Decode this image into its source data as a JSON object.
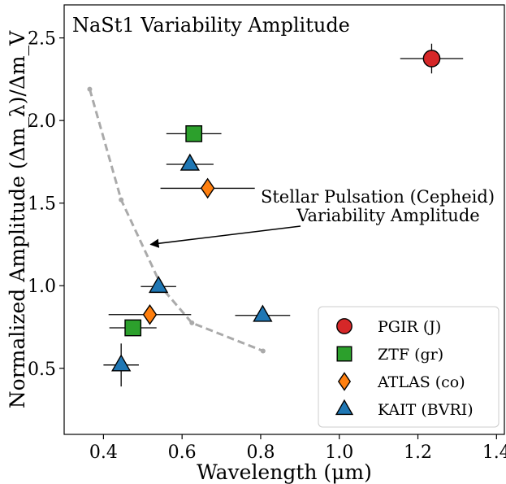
{
  "chart_data": {
    "type": "scatter",
    "title": "NaSt1 Variability Amplitude",
    "xlabel": "Wavelength (μm)",
    "ylabel": "Normalized Amplitude (Δm_λ)/Δm_V",
    "xlim": [
      0.3,
      1.42
    ],
    "ylim": [
      0.1,
      2.7
    ],
    "x_ticks": [
      "0.4",
      "0.6",
      "0.8",
      "1.0",
      "1.2",
      "1.4"
    ],
    "y_ticks": [
      "0.5",
      "1.0",
      "1.5",
      "2.0",
      "2.5"
    ],
    "legend_position": "lower-right",
    "series": [
      {
        "name": "PGIR (J)",
        "marker": "circle",
        "color": "#d62728",
        "points": [
          {
            "x": 1.235,
            "y": 2.375,
            "xerr": 0.08,
            "yerr": 0.09
          }
        ]
      },
      {
        "name": "ZTF (gr)",
        "marker": "square",
        "color": "#2ca02c",
        "points": [
          {
            "x": 0.475,
            "y": 0.745,
            "xerr": 0.06,
            "yerr": 0.0
          },
          {
            "x": 0.63,
            "y": 1.92,
            "xerr": 0.07,
            "yerr": 0.0
          }
        ]
      },
      {
        "name": "ATLAS (co)",
        "marker": "diamond",
        "color": "#ff7f0e",
        "points": [
          {
            "x": 0.518,
            "y": 0.825,
            "xerr": 0.105,
            "yerr": 0.0
          },
          {
            "x": 0.665,
            "y": 1.59,
            "xerr": 0.12,
            "yerr": 0.0
          }
        ]
      },
      {
        "name": "KAIT (BVRI)",
        "marker": "triangle",
        "color": "#1f77b4",
        "points": [
          {
            "x": 0.445,
            "y": 0.52,
            "xerr": 0.045,
            "yerr": 0.13
          },
          {
            "x": 0.54,
            "y": 0.995,
            "xerr": 0.045,
            "yerr": 0.0
          },
          {
            "x": 0.62,
            "y": 1.735,
            "xerr": 0.06,
            "yerr": 0.0
          },
          {
            "x": 0.805,
            "y": 0.82,
            "xerr": 0.07,
            "yerr": 0.0
          }
        ]
      }
    ],
    "reference_curve": {
      "color": "#aaaaaa",
      "style": "dashed",
      "x": [
        0.365,
        0.445,
        0.551,
        0.625,
        0.806
      ],
      "y": [
        2.19,
        1.52,
        0.98,
        0.775,
        0.605
      ]
    },
    "annotation": {
      "lines": [
        "Stellar Pulsation (Cepheid)",
        "Variability Amplitude"
      ],
      "arrow_to": {
        "x": 0.52,
        "y": 1.25
      }
    }
  }
}
